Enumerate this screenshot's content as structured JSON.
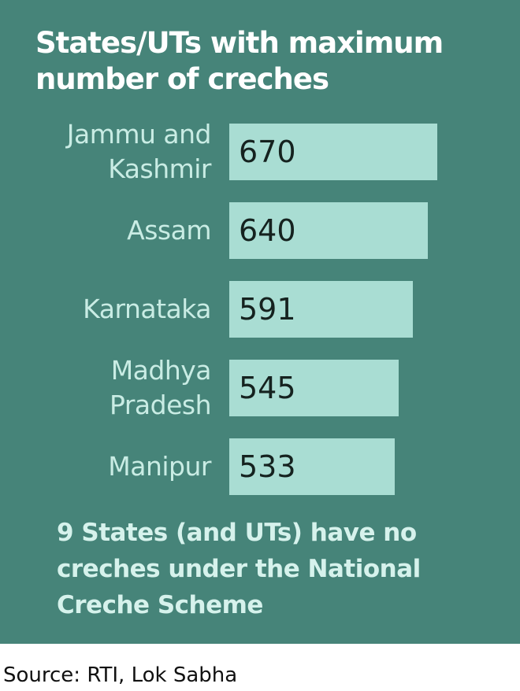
{
  "chart_data": {
    "type": "bar",
    "orientation": "horizontal",
    "title": "States/UTs with maximum number of creches",
    "categories": [
      "Jammu and Kashmir",
      "Assam",
      "Karnataka",
      "Madhya Pradesh",
      "Manipur"
    ],
    "values": [
      670,
      640,
      591,
      545,
      533
    ],
    "color": "#a9ddd3",
    "note": "9 States (and UTs) have no creches under the National Creche Scheme",
    "source": "Source: RTI, Lok Sabha"
  }
}
